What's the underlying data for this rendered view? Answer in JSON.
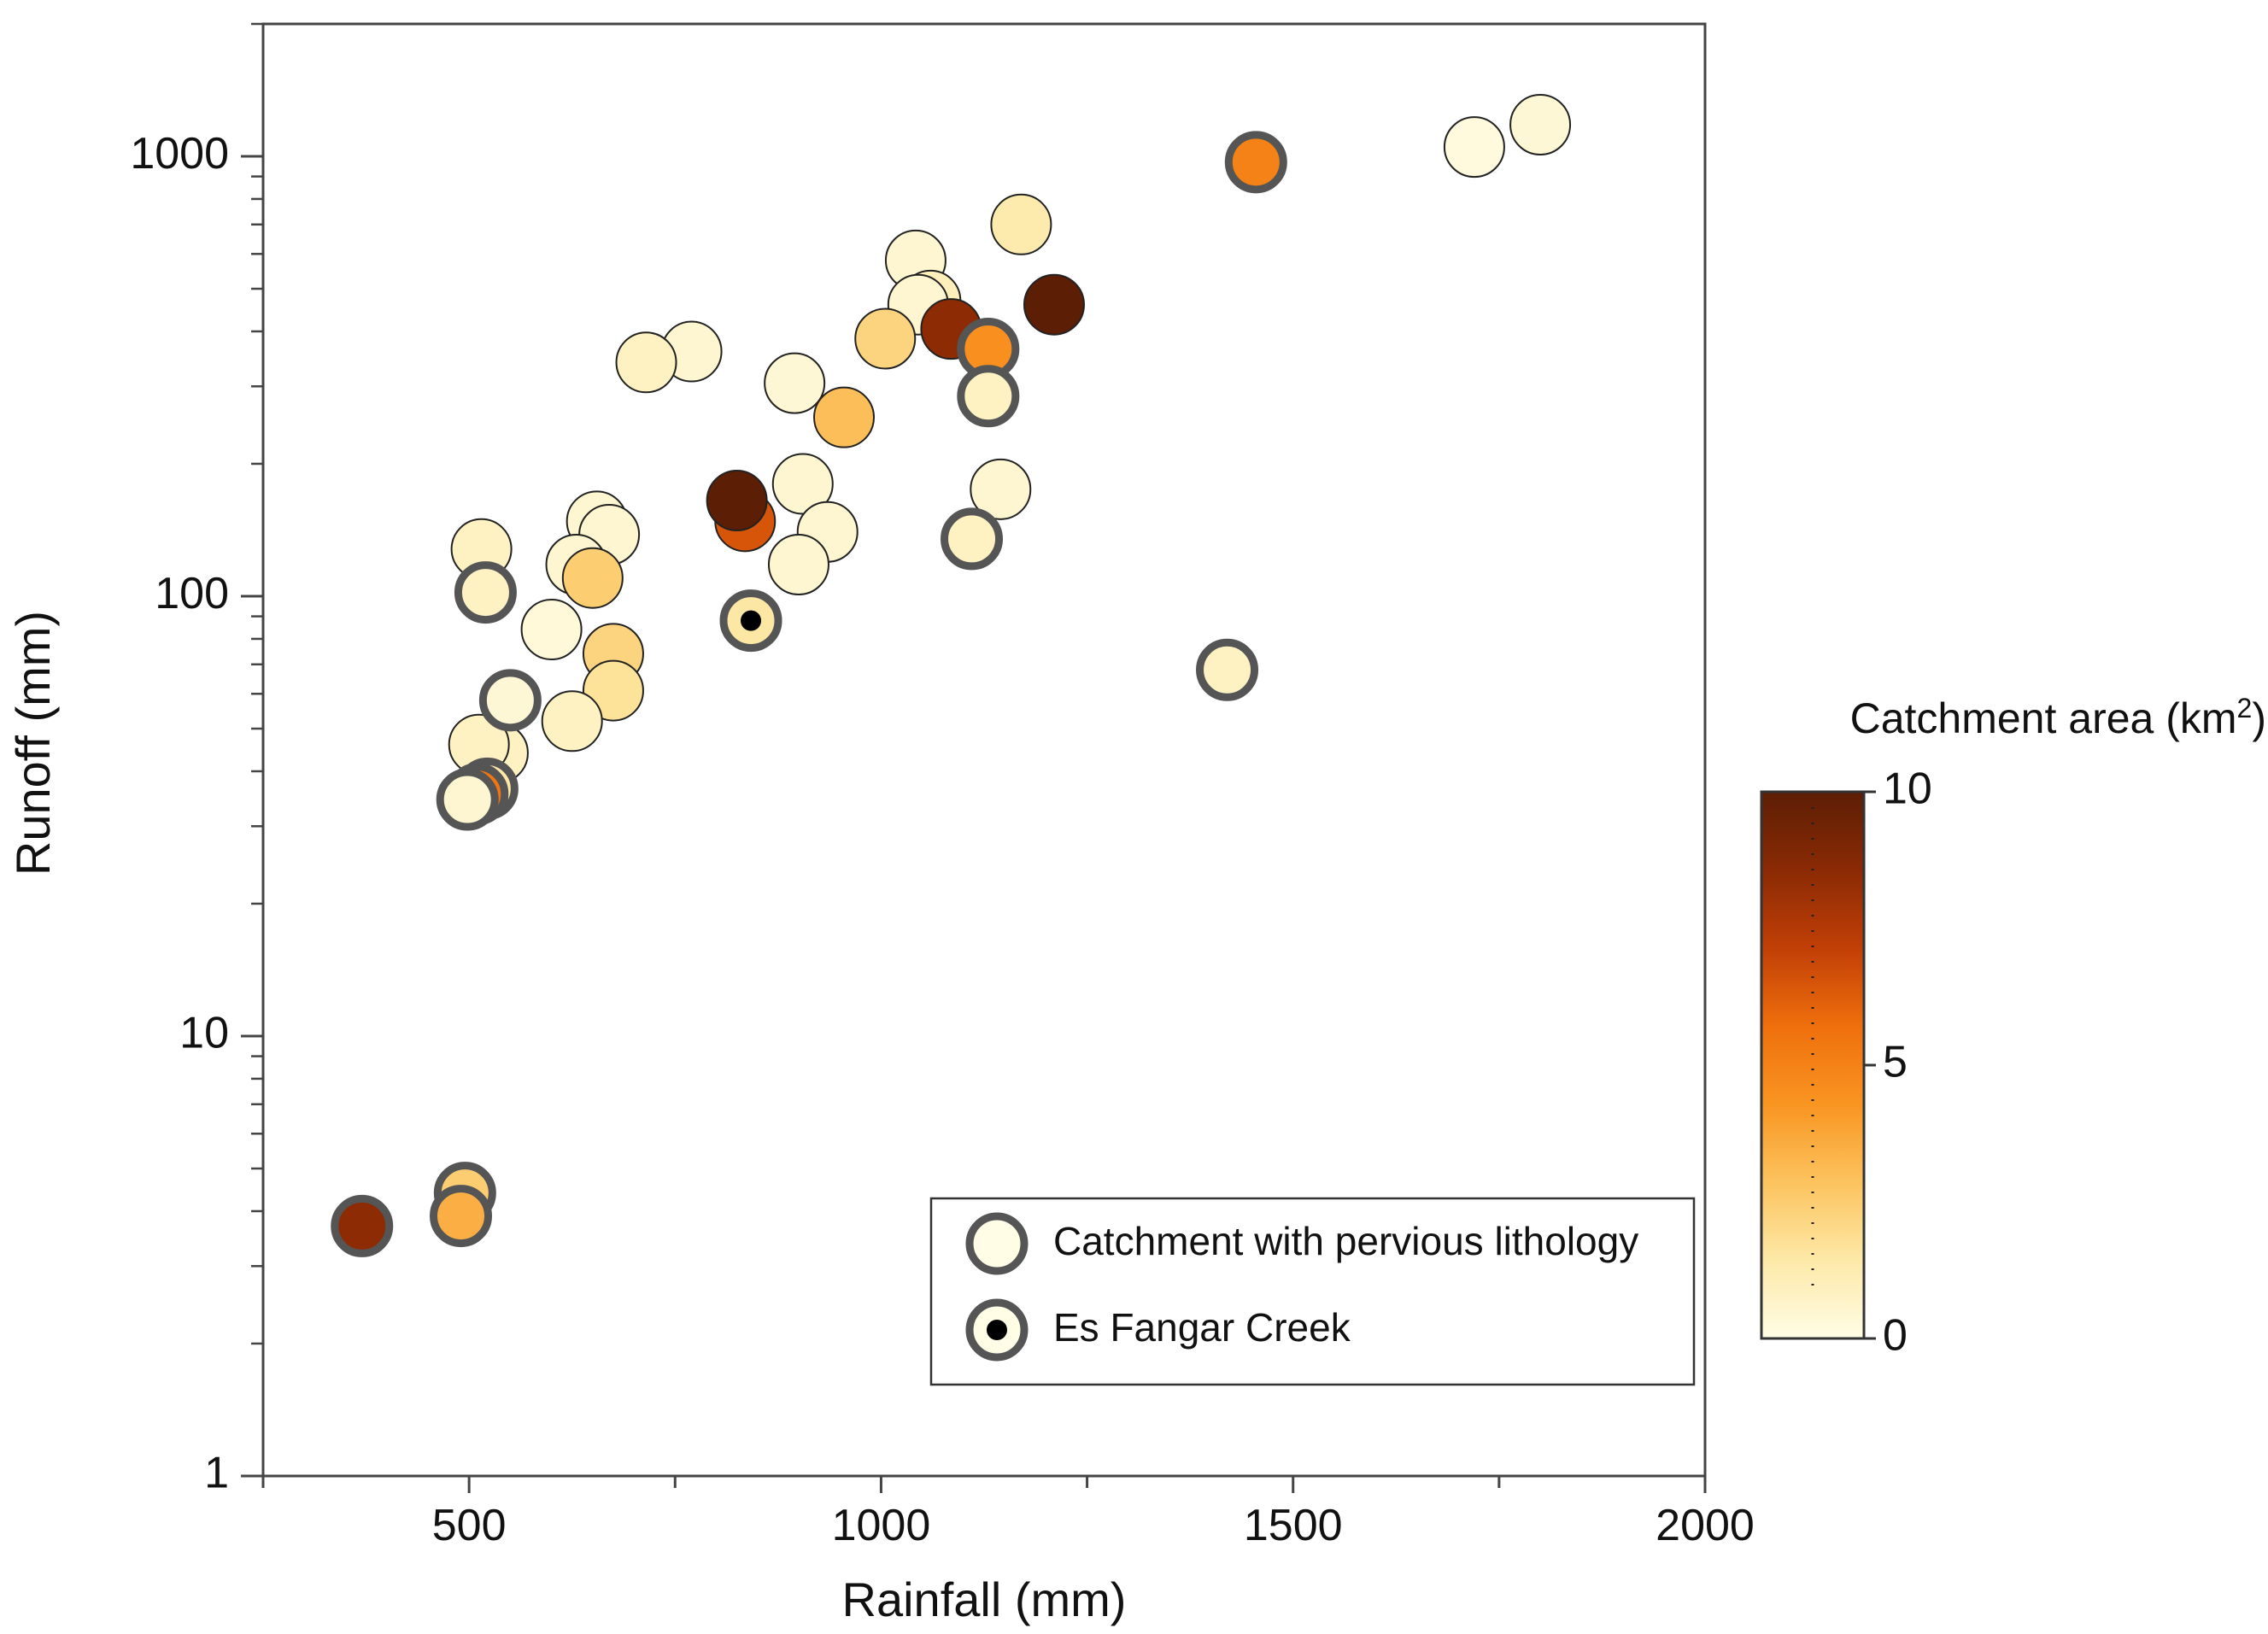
{
  "chart_data": {
    "type": "scatter",
    "xlabel": "Rainfall (mm)",
    "ylabel": "Runoff (mm)",
    "x_scale": "linear",
    "y_scale": "log",
    "xlim": [
      250,
      2000
    ],
    "ylim": [
      1,
      2000
    ],
    "x_ticks": [
      500,
      1000,
      1500,
      2000
    ],
    "x_tick_labels": [
      "500",
      "1000",
      "1500",
      "2000"
    ],
    "x_minor_ticks": [
      250,
      750,
      1250,
      1750
    ],
    "y_ticks": [
      1,
      10,
      100,
      1000
    ],
    "y_tick_labels": [
      "1",
      "10",
      "100",
      "1000"
    ],
    "colorbar": {
      "title": "Catchment area (km",
      "title_sup": "2",
      "title_close": ")",
      "min": 0,
      "max": 10,
      "ticks": [
        0,
        5,
        10
      ],
      "tick_labels": [
        "0",
        "5",
        "10"
      ],
      "colors": [
        "#fffde6",
        "#fde9a8",
        "#fcc35e",
        "#f99521",
        "#ef6f0d",
        "#c13f06",
        "#8a2a05",
        "#5c1e05"
      ]
    },
    "legend": {
      "position": "lower-right",
      "entries": [
        {
          "label": "Catchment with pervious lithology",
          "marker": "ringed"
        },
        {
          "label": "Es Fangar Creek",
          "marker": "ringed-dot"
        }
      ]
    },
    "marker_colors": {
      "ring": "#555555",
      "edge": "#222222",
      "dot": "#000000"
    },
    "points": [
      {
        "x": 1042,
        "y": 580,
        "area": 0.5,
        "pervious": false
      },
      {
        "x": 1060,
        "y": 470,
        "area": 1.0,
        "pervious": false
      },
      {
        "x": 1045,
        "y": 460,
        "area": 0.5,
        "pervious": false
      },
      {
        "x": 1170,
        "y": 700,
        "area": 1.3,
        "pervious": false
      },
      {
        "x": 1720,
        "y": 1050,
        "area": 0.2,
        "pervious": false
      },
      {
        "x": 1800,
        "y": 1180,
        "area": 0.4,
        "pervious": false
      },
      {
        "x": 770,
        "y": 360,
        "area": 0.5,
        "pervious": false
      },
      {
        "x": 715,
        "y": 340,
        "area": 0.8,
        "pervious": false
      },
      {
        "x": 1005,
        "y": 385,
        "area": 2.2,
        "pervious": false
      },
      {
        "x": 895,
        "y": 305,
        "area": 0.4,
        "pervious": false
      },
      {
        "x": 955,
        "y": 255,
        "area": 3.0,
        "pervious": false
      },
      {
        "x": 1085,
        "y": 405,
        "area": 8.5,
        "pervious": false
      },
      {
        "x": 1210,
        "y": 460,
        "area": 10.0,
        "pervious": false
      },
      {
        "x": 1145,
        "y": 175,
        "area": 0.5,
        "pervious": false
      },
      {
        "x": 905,
        "y": 180,
        "area": 0.5,
        "pervious": false
      },
      {
        "x": 935,
        "y": 140,
        "area": 0.5,
        "pervious": false
      },
      {
        "x": 900,
        "y": 118,
        "area": 0.5,
        "pervious": false
      },
      {
        "x": 835,
        "y": 148,
        "area": 6.5,
        "pervious": false
      },
      {
        "x": 825,
        "y": 165,
        "area": 10.0,
        "pervious": false
      },
      {
        "x": 515,
        "y": 128,
        "area": 0.8,
        "pervious": false
      },
      {
        "x": 655,
        "y": 148,
        "area": 0.5,
        "pervious": false
      },
      {
        "x": 670,
        "y": 138,
        "area": 0.5,
        "pervious": false
      },
      {
        "x": 630,
        "y": 118,
        "area": 0.5,
        "pervious": false
      },
      {
        "x": 650,
        "y": 110,
        "area": 2.5,
        "pervious": false
      },
      {
        "x": 600,
        "y": 84,
        "area": 0.3,
        "pervious": false
      },
      {
        "x": 675,
        "y": 74,
        "area": 2.2,
        "pervious": false
      },
      {
        "x": 675,
        "y": 61,
        "area": 1.7,
        "pervious": false
      },
      {
        "x": 625,
        "y": 52,
        "area": 0.8,
        "pervious": false
      },
      {
        "x": 535,
        "y": 44,
        "area": 0.8,
        "pervious": false
      },
      {
        "x": 512,
        "y": 46,
        "area": 0.8,
        "pervious": false
      },
      {
        "x": 1130,
        "y": 365,
        "area": 4.5,
        "pervious": true
      },
      {
        "x": 1130,
        "y": 285,
        "area": 0.8,
        "pervious": true
      },
      {
        "x": 1455,
        "y": 970,
        "area": 5.0,
        "pervious": true
      },
      {
        "x": 1110,
        "y": 135,
        "area": 0.8,
        "pervious": true
      },
      {
        "x": 1420,
        "y": 68,
        "area": 0.8,
        "pervious": true
      },
      {
        "x": 520,
        "y": 102,
        "area": 0.8,
        "pervious": true
      },
      {
        "x": 550,
        "y": 58,
        "area": 0.4,
        "pervious": true
      },
      {
        "x": 522,
        "y": 36.5,
        "area": 1.5,
        "pervious": true
      },
      {
        "x": 510,
        "y": 35.5,
        "area": 5.5,
        "pervious": true
      },
      {
        "x": 498,
        "y": 34.5,
        "area": 0.5,
        "pervious": true
      },
      {
        "x": 495,
        "y": 4.4,
        "area": 2.5,
        "pervious": true
      },
      {
        "x": 490,
        "y": 3.9,
        "area": 3.5,
        "pervious": true
      },
      {
        "x": 370,
        "y": 3.7,
        "area": 8.5,
        "pervious": true
      },
      {
        "x": 842,
        "y": 88,
        "area": 1.5,
        "pervious": true,
        "es_fangar": true
      }
    ]
  }
}
